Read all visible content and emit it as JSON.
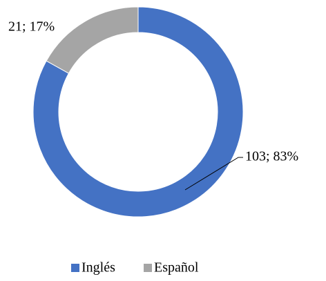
{
  "chart_data": {
    "type": "donut",
    "categories": [
      "Inglés",
      "Español"
    ],
    "values": [
      103,
      21
    ],
    "value_labels": [
      "103; 83%",
      "21; 17%"
    ],
    "colors": [
      "#4472c4",
      "#a5a5a5"
    ],
    "legend": "bottom"
  }
}
